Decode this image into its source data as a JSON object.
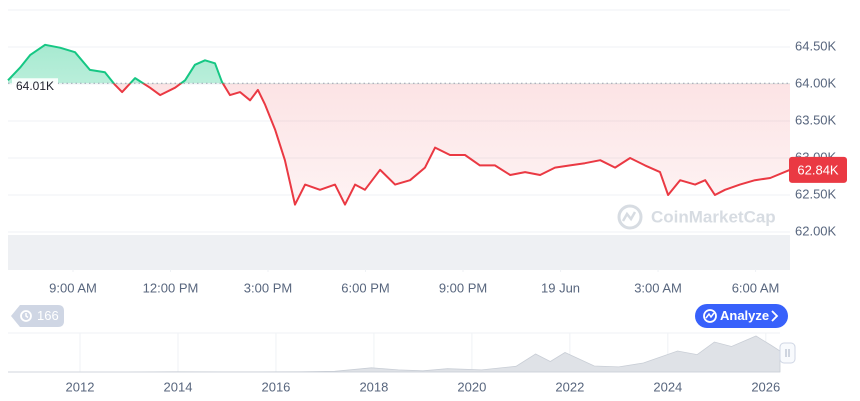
{
  "chart_data": [
    {
      "type": "line",
      "x": [
        7.0,
        7.37,
        7.68,
        8.14,
        8.6,
        9.06,
        9.52,
        9.98,
        10.29,
        10.51,
        10.91,
        11.37,
        11.68,
        12.14,
        12.45,
        12.75,
        13.06,
        13.37,
        13.58,
        13.83,
        14.14,
        14.45,
        14.69,
        14.91,
        15.22,
        15.52,
        15.83,
        16.14,
        16.6,
        17.06,
        17.37,
        17.68,
        17.98,
        18.45,
        18.91,
        19.37,
        19.83,
        20.14,
        20.6,
        21.06,
        21.52,
        21.98,
        22.45,
        22.91,
        23.37,
        23.83,
        24.29,
        24.75,
        25.22,
        25.68,
        26.14,
        26.6,
        27.06,
        27.31,
        27.68,
        28.14,
        28.45,
        28.75,
        29.06,
        29.52,
        29.98,
        30.45,
        31.06
      ],
      "values": [
        64050,
        64220,
        64390,
        64530,
        64490,
        64430,
        64190,
        64160,
        63990,
        63890,
        64080,
        63950,
        63850,
        63950,
        64050,
        64260,
        64320,
        64280,
        64030,
        63850,
        63890,
        63780,
        63920,
        63720,
        63380,
        62970,
        62370,
        62640,
        62570,
        62640,
        62370,
        62640,
        62570,
        62840,
        62640,
        62700,
        62870,
        63140,
        63040,
        63040,
        62900,
        62900,
        62770,
        62810,
        62770,
        62870,
        62900,
        62930,
        62970,
        62870,
        63000,
        62900,
        62810,
        62500,
        62700,
        62640,
        62700,
        62500,
        62570,
        62640,
        62700,
        62730,
        62840
      ],
      "reference": {
        "value": 64010,
        "label": "64.01K"
      },
      "current_price": {
        "value": 62840,
        "label": "62.84K"
      },
      "color_up": "#16c784",
      "color_down": "#ea3943",
      "xlim": [
        7,
        31.06
      ],
      "xticks": [
        {
          "value": 9,
          "label": "9:00 AM"
        },
        {
          "value": 12,
          "label": "12:00 PM"
        },
        {
          "value": 15,
          "label": "3:00 PM"
        },
        {
          "value": 18,
          "label": "6:00 PM"
        },
        {
          "value": 21,
          "label": "9:00 PM"
        },
        {
          "value": 24,
          "label": "19 Jun"
        },
        {
          "value": 27,
          "label": "3:00 AM"
        },
        {
          "value": 30,
          "label": "6:00 AM"
        }
      ],
      "ylim": [
        61500,
        65000
      ],
      "yticks": [
        {
          "value": 62000,
          "label": "62.00K"
        },
        {
          "value": 62500,
          "label": "62.50K"
        },
        {
          "value": 63000,
          "label": "63.00K"
        },
        {
          "value": 63500,
          "label": "63.50K"
        },
        {
          "value": 64000,
          "label": "64.00K"
        },
        {
          "value": 64500,
          "label": "64.50K"
        }
      ],
      "grid": true,
      "watermark": "CoinMarketCap"
    },
    {
      "type": "area",
      "x": [
        2010.53,
        2013.0,
        2013.9,
        2015.0,
        2016.5,
        2017.2,
        2017.95,
        2018.5,
        2019.0,
        2019.5,
        2020.2,
        2020.9,
        2021.3,
        2021.6,
        2021.9,
        2022.5,
        2023.0,
        2023.5,
        2024.2,
        2024.6,
        2024.95,
        2025.3,
        2025.8,
        2026.1,
        2026.29
      ],
      "values": [
        0,
        100,
        800,
        250,
        600,
        2500,
        14000,
        7000,
        4000,
        11000,
        7000,
        19000,
        60000,
        35000,
        65000,
        20000,
        17000,
        30000,
        70000,
        58000,
        100000,
        85000,
        120000,
        90000,
        70000
      ],
      "xlim": [
        2010.53,
        2026.29
      ],
      "ylim": [
        0,
        130000
      ],
      "xticks": [
        2012,
        2014,
        2016,
        2018,
        2020,
        2022,
        2024,
        2026
      ],
      "color": "#dfe2e7"
    }
  ],
  "controls": {
    "history_count": 166,
    "analyze_button": "Analyze"
  }
}
